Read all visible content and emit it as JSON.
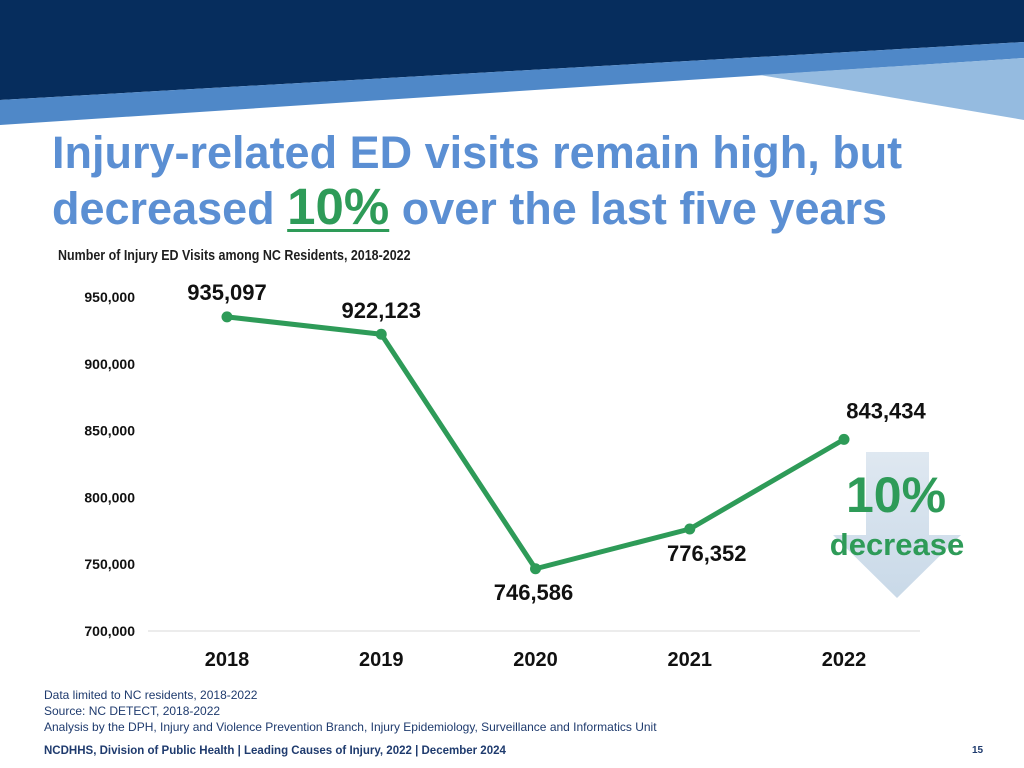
{
  "slide": {
    "title_line1": "Injury-related ED visits remain high, but",
    "title_line2_prefix": "decreased",
    "title_highlight": "10%",
    "title_line2_suffix": "over the last five years"
  },
  "chart_data": {
    "type": "line",
    "title": "Number of Injury ED Visits among NC Residents, 2018-2022",
    "categories": [
      "2018",
      "2019",
      "2020",
      "2021",
      "2022"
    ],
    "values": [
      935097,
      922123,
      746586,
      776352,
      843434
    ],
    "data_labels": [
      "935,097",
      "922,123",
      "746,586",
      "776,352",
      "843,434"
    ],
    "ylim": [
      700000,
      950000
    ],
    "y_tick_values": [
      700000,
      750000,
      800000,
      850000,
      900000,
      950000
    ],
    "y_tick_labels": [
      "700,000",
      "750,000",
      "800,000",
      "850,000",
      "900,000",
      "950,000"
    ],
    "grid": false
  },
  "annotation": {
    "value": "10%",
    "label": "decrease",
    "icon": "down-arrow-icon"
  },
  "notes": [
    "Data limited to NC residents, 2018-2022",
    "Source: NC DETECT, 2018-2022",
    "Analysis by the DPH, Injury and Violence Prevention Branch, Injury Epidemiology, Surveillance and Informatics Unit"
  ],
  "footer": {
    "text": "NCDHHS, Division of Public Health | Leading Causes of Injury, 2022 | December 2024",
    "page_number": "15"
  },
  "colors": {
    "header_navy": "#062d5d",
    "header_blue": "#4f88c8",
    "header_light_blue": "#95bbe0",
    "title": "#5b8fd3",
    "accent_green": "#2e9b58",
    "arrow": "#c9d9e8",
    "notes": "#1f3b6e"
  }
}
